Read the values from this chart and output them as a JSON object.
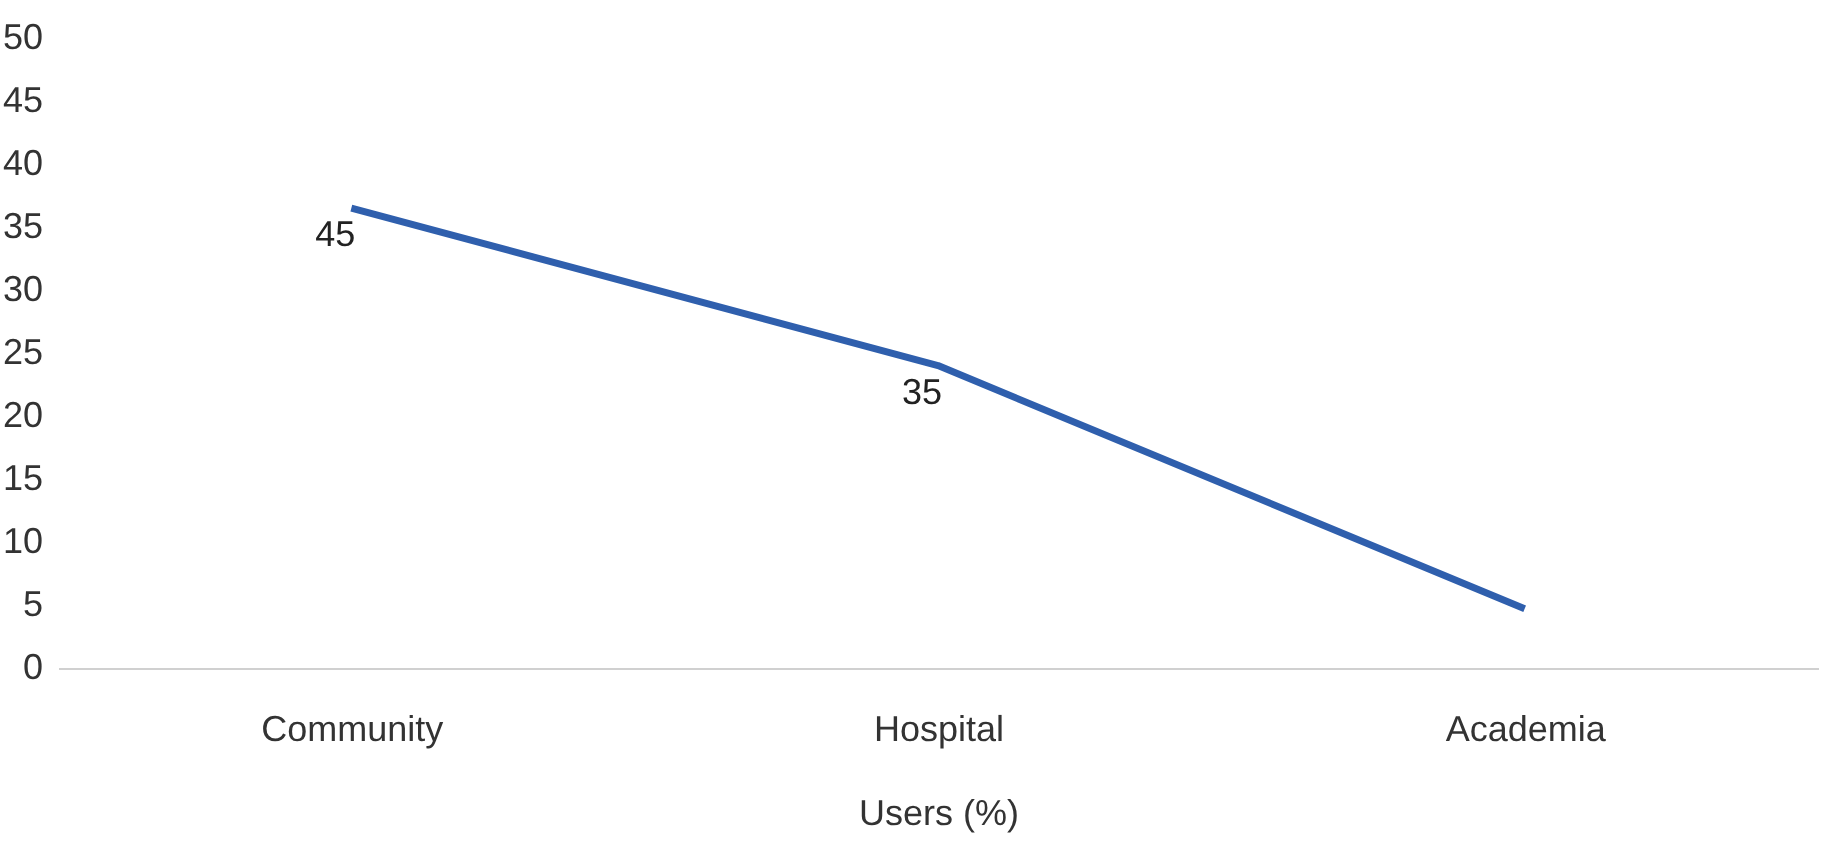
{
  "chart_data": {
    "type": "line",
    "xlabel": "Users (%)",
    "categories": [
      "Community",
      "Hospital",
      "Academia"
    ],
    "series": [
      {
        "color": "#2f5fad",
        "values": [
          36.5,
          24,
          4.7
        ]
      }
    ],
    "annotations": [
      {
        "text": "45",
        "x": "Community",
        "y": 36.5
      },
      {
        "text": "35",
        "x": "Hospital",
        "y": 24
      }
    ],
    "ylim": [
      0,
      50
    ],
    "yticks": [
      0,
      5,
      10,
      15,
      20,
      25,
      30,
      35,
      40,
      45,
      50
    ],
    "grid": false,
    "legend": false,
    "marker": "none",
    "line_style": "solid"
  }
}
